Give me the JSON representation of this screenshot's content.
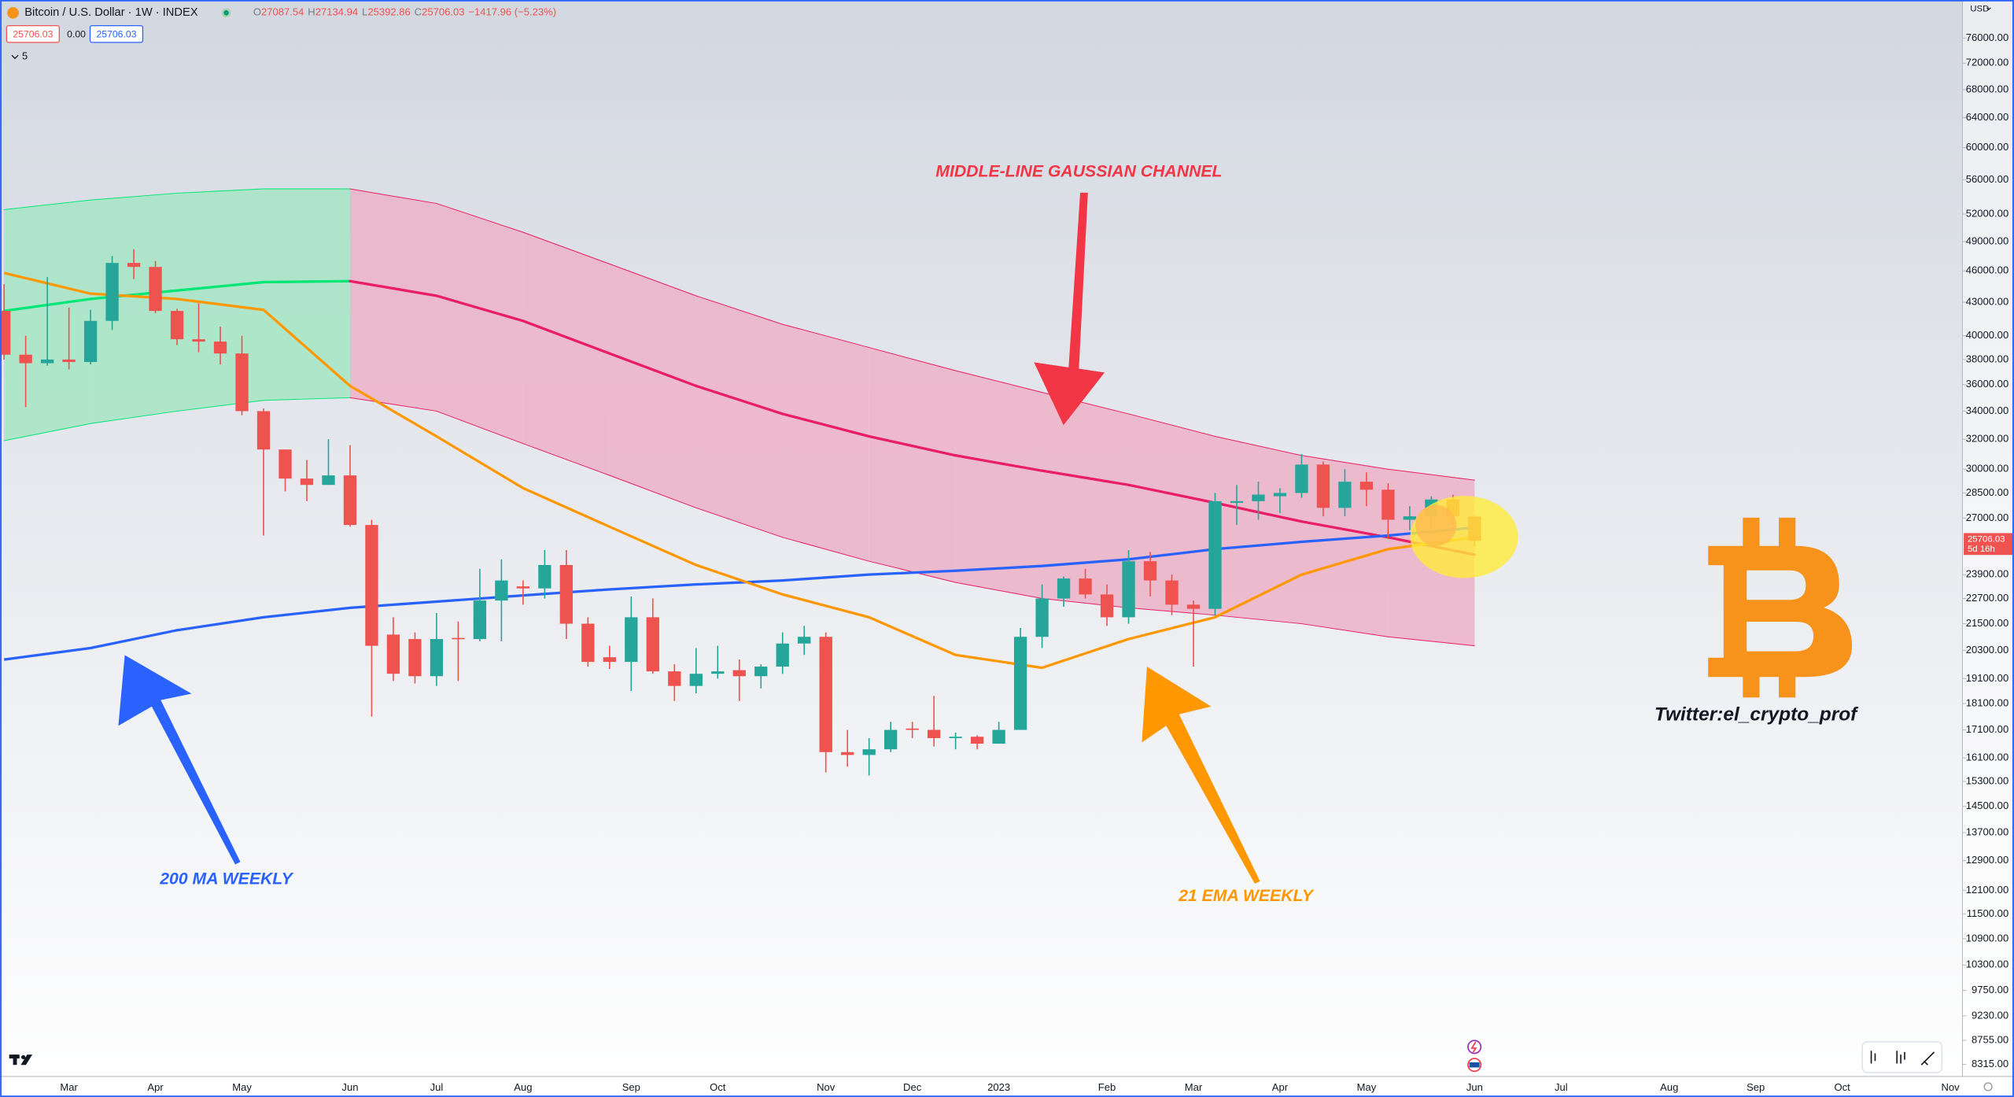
{
  "chart_data": {
    "type": "candlestick",
    "title": "Bitcoin / U.S. Dollar · 1W · INDEX",
    "legend_fields": [
      {
        "key": "O",
        "text": "27087.54"
      },
      {
        "key": "H",
        "text": "27134.94"
      },
      {
        "key": "L",
        "text": "25392.86"
      },
      {
        "key": "C",
        "text": "25706.03"
      },
      {
        "key": "",
        "text": "−1417.96 (−5.23%)"
      }
    ],
    "price_boxes": [
      "25706.03",
      "0.00",
      "25706.03"
    ],
    "indicator_count": "5",
    "currency": "USD",
    "last_price_label": "25706.03",
    "countdown": "5d 16h",
    "categories": [
      null,
      null,
      null,
      "Mar",
      null,
      null,
      null,
      "Apr",
      null,
      null,
      null,
      "May",
      null,
      null,
      null,
      null,
      "Jun",
      null,
      null,
      null,
      "Jul",
      null,
      null,
      null,
      "Aug",
      null,
      null,
      null,
      null,
      "Sep",
      null,
      null,
      null,
      "Oct",
      null,
      null,
      null,
      null,
      "Nov",
      null,
      null,
      null,
      "Dec",
      null,
      null,
      null,
      "2023",
      null,
      null,
      null,
      null,
      "Feb",
      null,
      null,
      null,
      "Mar",
      null,
      null,
      null,
      "Apr",
      null,
      null,
      null,
      "May",
      null,
      null,
      null,
      null,
      "Jun",
      null,
      null,
      null,
      "Jul",
      null,
      null,
      null,
      null,
      "Aug",
      null,
      null,
      null,
      "Sep",
      null,
      null,
      null,
      "Oct",
      null,
      null,
      null,
      null,
      "Nov"
    ],
    "open": [
      42200,
      38400,
      37700,
      38000,
      37800,
      41300,
      46800,
      46400,
      42200,
      39700,
      39500,
      38500,
      34000,
      31300,
      29400,
      29000,
      29600,
      26600,
      21000,
      20800,
      19200,
      20850,
      20800,
      22600,
      23300,
      23200,
      24400,
      21500,
      20000,
      19800,
      21800,
      19400,
      18800,
      19300,
      19450,
      19200,
      19600,
      20600,
      20900,
      16300,
      16200,
      16400,
      17150,
      17100,
      16800,
      16850,
      16600,
      17100,
      20900,
      22700,
      23700,
      22900,
      21800,
      24600,
      23600,
      22400,
      22200,
      27900,
      28000,
      28300,
      28500,
      30300,
      27600,
      29200,
      28700,
      26900,
      27100,
      28100,
      27087.54,
      null,
      null,
      null,
      null,
      null,
      null,
      null,
      null,
      null,
      null,
      null,
      null,
      null,
      null,
      null,
      null,
      null,
      null,
      null,
      null,
      null,
      null
    ],
    "high": [
      44700,
      40000,
      45400,
      42500,
      42300,
      47500,
      48200,
      47000,
      42400,
      42900,
      40800,
      40000,
      34200,
      31300,
      30600,
      32000,
      31600,
      26900,
      21800,
      21100,
      22000,
      21600,
      24200,
      24700,
      23600,
      25200,
      25200,
      21800,
      20500,
      22800,
      22700,
      19700,
      20400,
      20500,
      19900,
      19700,
      21100,
      21400,
      21100,
      17100,
      16800,
      17400,
      17400,
      18400,
      17000,
      16900,
      17400,
      21300,
      23400,
      23800,
      24200,
      23400,
      25200,
      25100,
      23900,
      22600,
      28500,
      29000,
      29200,
      28800,
      31000,
      30500,
      30000,
      29800,
      29100,
      27700,
      28300,
      28400,
      27134.94,
      null,
      null,
      null,
      null,
      null,
      null,
      null,
      null,
      null,
      null,
      null,
      null,
      null,
      null,
      null,
      null,
      null,
      null,
      null,
      null,
      null,
      null
    ],
    "low": [
      38000,
      34300,
      37500,
      37200,
      37600,
      40500,
      45200,
      42000,
      39200,
      38600,
      37600,
      33700,
      26000,
      28600,
      28000,
      29000,
      26500,
      17600,
      19000,
      18900,
      18800,
      19000,
      20700,
      20700,
      22400,
      22700,
      20800,
      19600,
      19500,
      18600,
      19300,
      18200,
      18500,
      19100,
      18200,
      18700,
      19300,
      20100,
      15600,
      15800,
      15500,
      16300,
      16800,
      16500,
      16400,
      16400,
      16600,
      17100,
      20400,
      22300,
      22700,
      21400,
      21500,
      22800,
      21900,
      19600,
      21900,
      26600,
      26900,
      27300,
      28200,
      27100,
      27100,
      27700,
      25800,
      26300,
      26100,
      26600,
      25392.86,
      null,
      null,
      null,
      null,
      null,
      null,
      null,
      null,
      null,
      null,
      null,
      null,
      null,
      null,
      null,
      null,
      null,
      null,
      null,
      null,
      null,
      null
    ],
    "close": [
      38400,
      37700,
      38000,
      37800,
      41300,
      46800,
      46400,
      42200,
      39700,
      39500,
      38500,
      34000,
      31300,
      29400,
      29000,
      29600,
      26600,
      20500,
      19300,
      19200,
      20800,
      20800,
      22600,
      23600,
      23200,
      24400,
      21500,
      19800,
      19800,
      21800,
      19400,
      18800,
      19300,
      19400,
      19200,
      19600,
      20600,
      20900,
      16300,
      16200,
      16400,
      17100,
      17100,
      16800,
      16850,
      16600,
      17100,
      20900,
      22700,
      23700,
      22900,
      21800,
      24600,
      23600,
      22400,
      22200,
      28000,
      28000,
      28400,
      28500,
      30300,
      27600,
      29200,
      28700,
      26900,
      27100,
      28100,
      27100,
      25706.03,
      null,
      null,
      null,
      null,
      null,
      null,
      null,
      null,
      null,
      null,
      null,
      null,
      null,
      null,
      null,
      null,
      null,
      null,
      null,
      null,
      null,
      null
    ],
    "up_color": "#26a69a",
    "down_color": "#ef5350",
    "log_scale": true,
    "grid": false,
    "ylim": [
      8100,
      82500
    ],
    "yticks": [
      {
        "value": 76000,
        "label": "76000.00"
      },
      {
        "value": 72000,
        "label": "72000.00"
      },
      {
        "value": 68000,
        "label": "68000.00"
      },
      {
        "value": 64000,
        "label": "64000.00"
      },
      {
        "value": 60000,
        "label": "60000.00"
      },
      {
        "value": 56000,
        "label": "56000.00"
      },
      {
        "value": 52000,
        "label": "52000.00"
      },
      {
        "value": 49000,
        "label": "49000.00"
      },
      {
        "value": 46000,
        "label": "46000.00"
      },
      {
        "value": 43000,
        "label": "43000.00"
      },
      {
        "value": 40000,
        "label": "40000.00"
      },
      {
        "value": 38000,
        "label": "38000.00"
      },
      {
        "value": 36000,
        "label": "36000.00"
      },
      {
        "value": 34000,
        "label": "34000.00"
      },
      {
        "value": 32000,
        "label": "32000.00"
      },
      {
        "value": 30000,
        "label": "30000.00"
      },
      {
        "value": 28500,
        "label": "28500.00"
      },
      {
        "value": 27000,
        "label": "27000.00"
      },
      {
        "value": 23900,
        "label": "23900.00"
      },
      {
        "value": 22700,
        "label": "22700.00"
      },
      {
        "value": 21500,
        "label": "21500.00"
      },
      {
        "value": 20300,
        "label": "20300.00"
      },
      {
        "value": 19100,
        "label": "19100.00"
      },
      {
        "value": 18100,
        "label": "18100.00"
      },
      {
        "value": 17100,
        "label": "17100.00"
      },
      {
        "value": 16100,
        "label": "16100.00"
      },
      {
        "value": 15300,
        "label": "15300.00"
      },
      {
        "value": 14500,
        "label": "14500.00"
      },
      {
        "value": 13700,
        "label": "13700.00"
      },
      {
        "value": 12900,
        "label": "12900.00"
      },
      {
        "value": 12100,
        "label": "12100.00"
      },
      {
        "value": 11500,
        "label": "11500.00"
      },
      {
        "value": 10900,
        "label": "10900.00"
      },
      {
        "value": 10300,
        "label": "10300.00"
      },
      {
        "value": 9750,
        "label": "9750.00"
      },
      {
        "value": 9230,
        "label": "9230.00"
      },
      {
        "value": 8755,
        "label": "8755.00"
      },
      {
        "value": 8315,
        "label": "8315.00"
      }
    ],
    "indicator_x": [
      0,
      4,
      8,
      12,
      16,
      20,
      24,
      28,
      32,
      36,
      40,
      44,
      48,
      52,
      56,
      60,
      64,
      68
    ],
    "gaussian_channel": {
      "middle": [
        42200,
        43300,
        44100,
        44900,
        45000,
        43600,
        41300,
        38500,
        35900,
        33800,
        32200,
        30900,
        29900,
        29000,
        27900,
        26800,
        25900,
        24950
      ],
      "upper": [
        52500,
        53600,
        54400,
        54900,
        54900,
        53200,
        50000,
        46700,
        43600,
        41000,
        39000,
        37100,
        35400,
        33800,
        32200,
        30900,
        30000,
        29300
      ],
      "lower": [
        31900,
        33100,
        34000,
        34800,
        35000,
        34000,
        31700,
        29600,
        27600,
        25900,
        24600,
        23500,
        22700,
        22250,
        21900,
        21500,
        20900,
        20500
      ],
      "rising_color": "#00e676",
      "falling_color": "#e91e63",
      "fill_rising": "#a9e6c6",
      "fill_falling": "#ecb5c9"
    },
    "moving_averages": [
      {
        "color": "#2962ff",
        "values": [
          19900,
          20400,
          21200,
          21800,
          22250,
          22550,
          22850,
          23150,
          23400,
          23600,
          23900,
          24100,
          24350,
          24700,
          25250,
          25650,
          26000,
          26450
        ]
      },
      {
        "color": "#ff9800",
        "values": [
          45800,
          43800,
          43300,
          42300,
          35900,
          32200,
          28800,
          26500,
          24400,
          22900,
          21800,
          20100,
          19550,
          20800,
          21800,
          23900,
          25250,
          25900
        ]
      }
    ],
    "annotations": [
      {
        "text": "MIDDLE-LINE GAUSSIAN CHANNEL",
        "color": "#f23645"
      },
      {
        "text": "200 MA WEEKLY",
        "color": "#2962ff"
      },
      {
        "text": "21 EMA WEEKLY",
        "color": "#ff9800"
      },
      {
        "text": "Twitter:el_crypto_prof",
        "color": "#131722"
      }
    ]
  }
}
